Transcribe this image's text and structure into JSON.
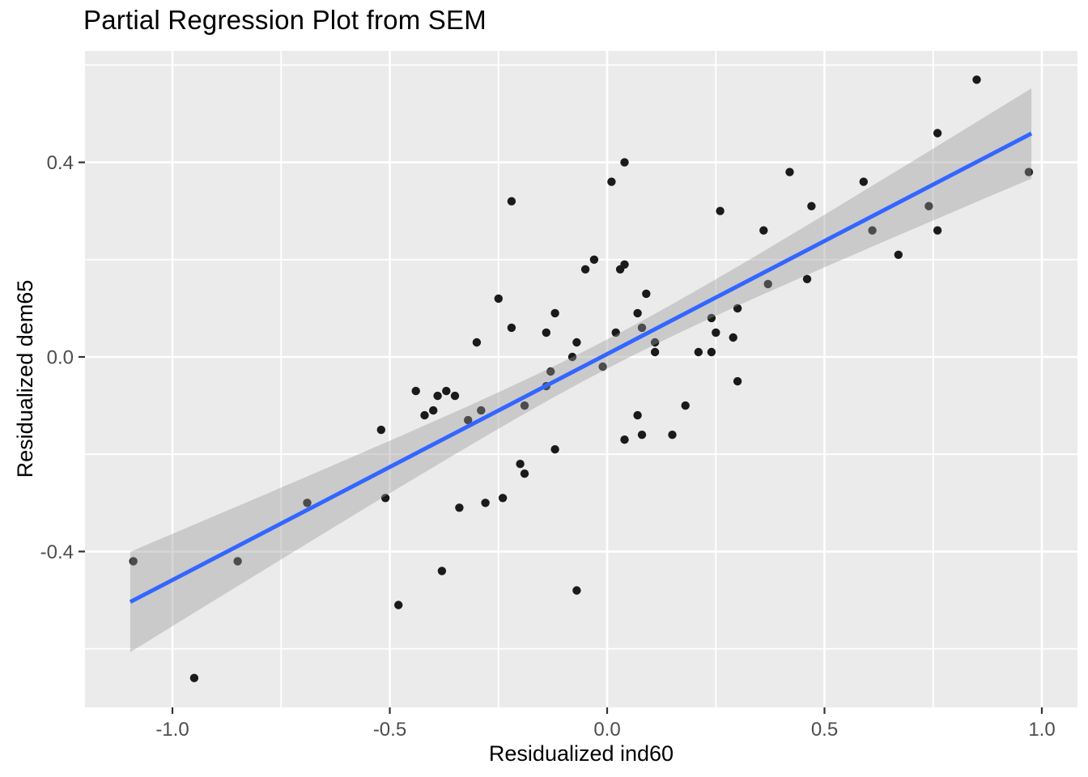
{
  "chart_data": {
    "type": "scatter",
    "title": "Partial Regression Plot from SEM",
    "xlabel": "Residualized ind60",
    "ylabel": "Residualized dem65",
    "xlim": [
      -1.2,
      1.08
    ],
    "ylim": [
      -0.72,
      0.63
    ],
    "grid": true,
    "legend": "none",
    "x_ticks": [
      {
        "v": -1.0,
        "label": "-1.0"
      },
      {
        "v": -0.5,
        "label": "-0.5"
      },
      {
        "v": 0.0,
        "label": "0.0"
      },
      {
        "v": 0.5,
        "label": "0.5"
      },
      {
        "v": 1.0,
        "label": "1.0"
      }
    ],
    "y_ticks": [
      {
        "v": 0.4,
        "label": "0.4"
      },
      {
        "v": 0.0,
        "label": "0.0"
      },
      {
        "v": -0.4,
        "label": "-0.4"
      }
    ],
    "x_minor": [
      -0.75,
      -0.25,
      0.25,
      0.75
    ],
    "y_minor": [
      -0.6,
      -0.2,
      0.2,
      0.6
    ],
    "points": [
      [
        0.04,
        0.4
      ],
      [
        0.01,
        0.36
      ],
      [
        -0.22,
        0.32
      ],
      [
        0.26,
        0.3
      ],
      [
        -0.03,
        0.2
      ],
      [
        -0.05,
        0.18
      ],
      [
        0.04,
        0.19
      ],
      [
        0.03,
        0.18
      ],
      [
        -0.25,
        0.12
      ],
      [
        0.09,
        0.13
      ],
      [
        -0.12,
        0.09
      ],
      [
        0.07,
        0.09
      ],
      [
        0.24,
        0.08
      ],
      [
        -0.22,
        0.06
      ],
      [
        0.08,
        0.06
      ],
      [
        0.25,
        0.05
      ],
      [
        -0.14,
        0.05
      ],
      [
        0.29,
        0.04
      ],
      [
        -0.3,
        0.03
      ],
      [
        0.85,
        0.57
      ],
      [
        0.76,
        0.46
      ],
      [
        0.42,
        0.38
      ],
      [
        0.97,
        0.38
      ],
      [
        0.59,
        0.36
      ],
      [
        0.47,
        0.31
      ],
      [
        0.74,
        0.31
      ],
      [
        0.36,
        0.26
      ],
      [
        0.61,
        0.26
      ],
      [
        0.76,
        0.26
      ],
      [
        0.67,
        0.21
      ],
      [
        0.37,
        0.15
      ],
      [
        0.46,
        0.16
      ],
      [
        -0.52,
        -0.15
      ],
      [
        -0.69,
        -0.3
      ],
      [
        -0.51,
        -0.29
      ],
      [
        -1.09,
        -0.42
      ],
      [
        -0.85,
        -0.42
      ],
      [
        -0.48,
        -0.51
      ],
      [
        -0.95,
        -0.66
      ],
      [
        -0.07,
        0.03
      ],
      [
        0.02,
        0.05
      ],
      [
        -0.08,
        0.0
      ],
      [
        -0.01,
        -0.02
      ],
      [
        -0.13,
        -0.03
      ],
      [
        -0.14,
        -0.06
      ],
      [
        -0.19,
        -0.1
      ],
      [
        0.11,
        0.03
      ],
      [
        0.11,
        0.01
      ],
      [
        0.21,
        0.01
      ],
      [
        0.24,
        0.01
      ],
      [
        0.3,
        0.1
      ],
      [
        0.3,
        -0.05
      ],
      [
        -0.44,
        -0.07
      ],
      [
        -0.39,
        -0.08
      ],
      [
        -0.37,
        -0.07
      ],
      [
        -0.35,
        -0.08
      ],
      [
        -0.4,
        -0.11
      ],
      [
        -0.42,
        -0.12
      ],
      [
        -0.29,
        -0.11
      ],
      [
        -0.32,
        -0.13
      ],
      [
        -0.12,
        -0.19
      ],
      [
        -0.2,
        -0.22
      ],
      [
        -0.19,
        -0.24
      ],
      [
        -0.24,
        -0.29
      ],
      [
        -0.28,
        -0.3
      ],
      [
        -0.34,
        -0.31
      ],
      [
        -0.38,
        -0.44
      ],
      [
        -0.07,
        -0.48
      ],
      [
        0.04,
        -0.17
      ],
      [
        0.08,
        -0.16
      ],
      [
        0.15,
        -0.16
      ],
      [
        0.07,
        -0.12
      ],
      [
        0.18,
        -0.1
      ]
    ],
    "smooth": {
      "type": "linear",
      "intercept": 0.006,
      "slope": 0.4646,
      "x_min": -1.097,
      "x_max": 0.976,
      "ci_h0": 0.03,
      "ci_k": 0.09
    },
    "colors": {
      "panel_bg": "#EBEBEB",
      "grid": "#FFFFFF",
      "point": "#1A1A1A",
      "smooth_line": "#3366FF",
      "ribbon": "rgba(153,153,153,0.4)",
      "tick_text": "#4D4D4D",
      "tick_mark": "#333333",
      "title_text": "#000000"
    }
  }
}
